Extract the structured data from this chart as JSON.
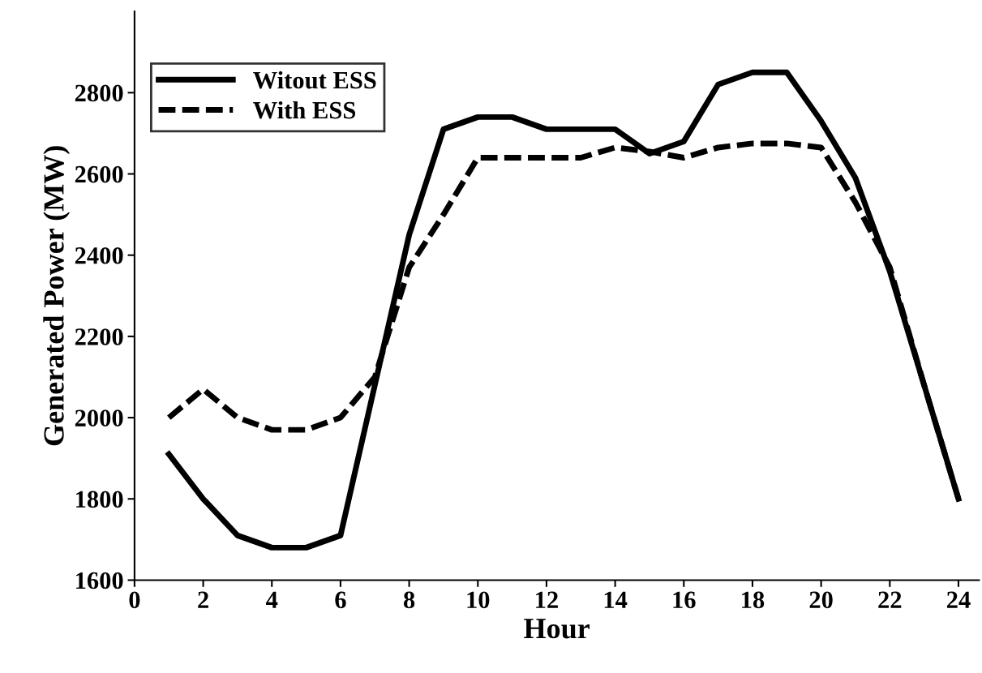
{
  "chart_data": {
    "type": "line",
    "xlabel": "Hour",
    "ylabel": "Generated Power (MW)",
    "x": [
      1,
      2,
      3,
      4,
      5,
      6,
      7,
      8,
      9,
      10,
      11,
      12,
      13,
      14,
      15,
      16,
      17,
      18,
      19,
      20,
      21,
      22,
      23,
      24
    ],
    "series": [
      {
        "name": "Witout ESS",
        "color": "#000000",
        "line_style": "solid",
        "values": [
          1910,
          1800,
          1710,
          1680,
          1680,
          1710,
          2080,
          2450,
          2710,
          2740,
          2740,
          2710,
          2710,
          2710,
          2650,
          2680,
          2820,
          2850,
          2850,
          2730,
          2590,
          2360,
          2080,
          1800
        ]
      },
      {
        "name": "With ESS",
        "color": "#000000",
        "line_style": "dashed",
        "values": [
          2000,
          2070,
          2000,
          1970,
          1970,
          2000,
          2100,
          2370,
          2500,
          2640,
          2640,
          2640,
          2640,
          2665,
          2655,
          2640,
          2665,
          2675,
          2675,
          2665,
          2530,
          2370,
          2080,
          1800
        ]
      }
    ],
    "xlim": [
      0,
      24.6
    ],
    "xticks": [
      0,
      2,
      4,
      6,
      8,
      10,
      12,
      14,
      16,
      18,
      20,
      22,
      24
    ],
    "ylim": [
      1600,
      3000
    ],
    "yticks": [
      1600,
      1800,
      2000,
      2200,
      2400,
      2600,
      2800
    ],
    "grid": false,
    "legend": "top left",
    "marker": "none"
  }
}
